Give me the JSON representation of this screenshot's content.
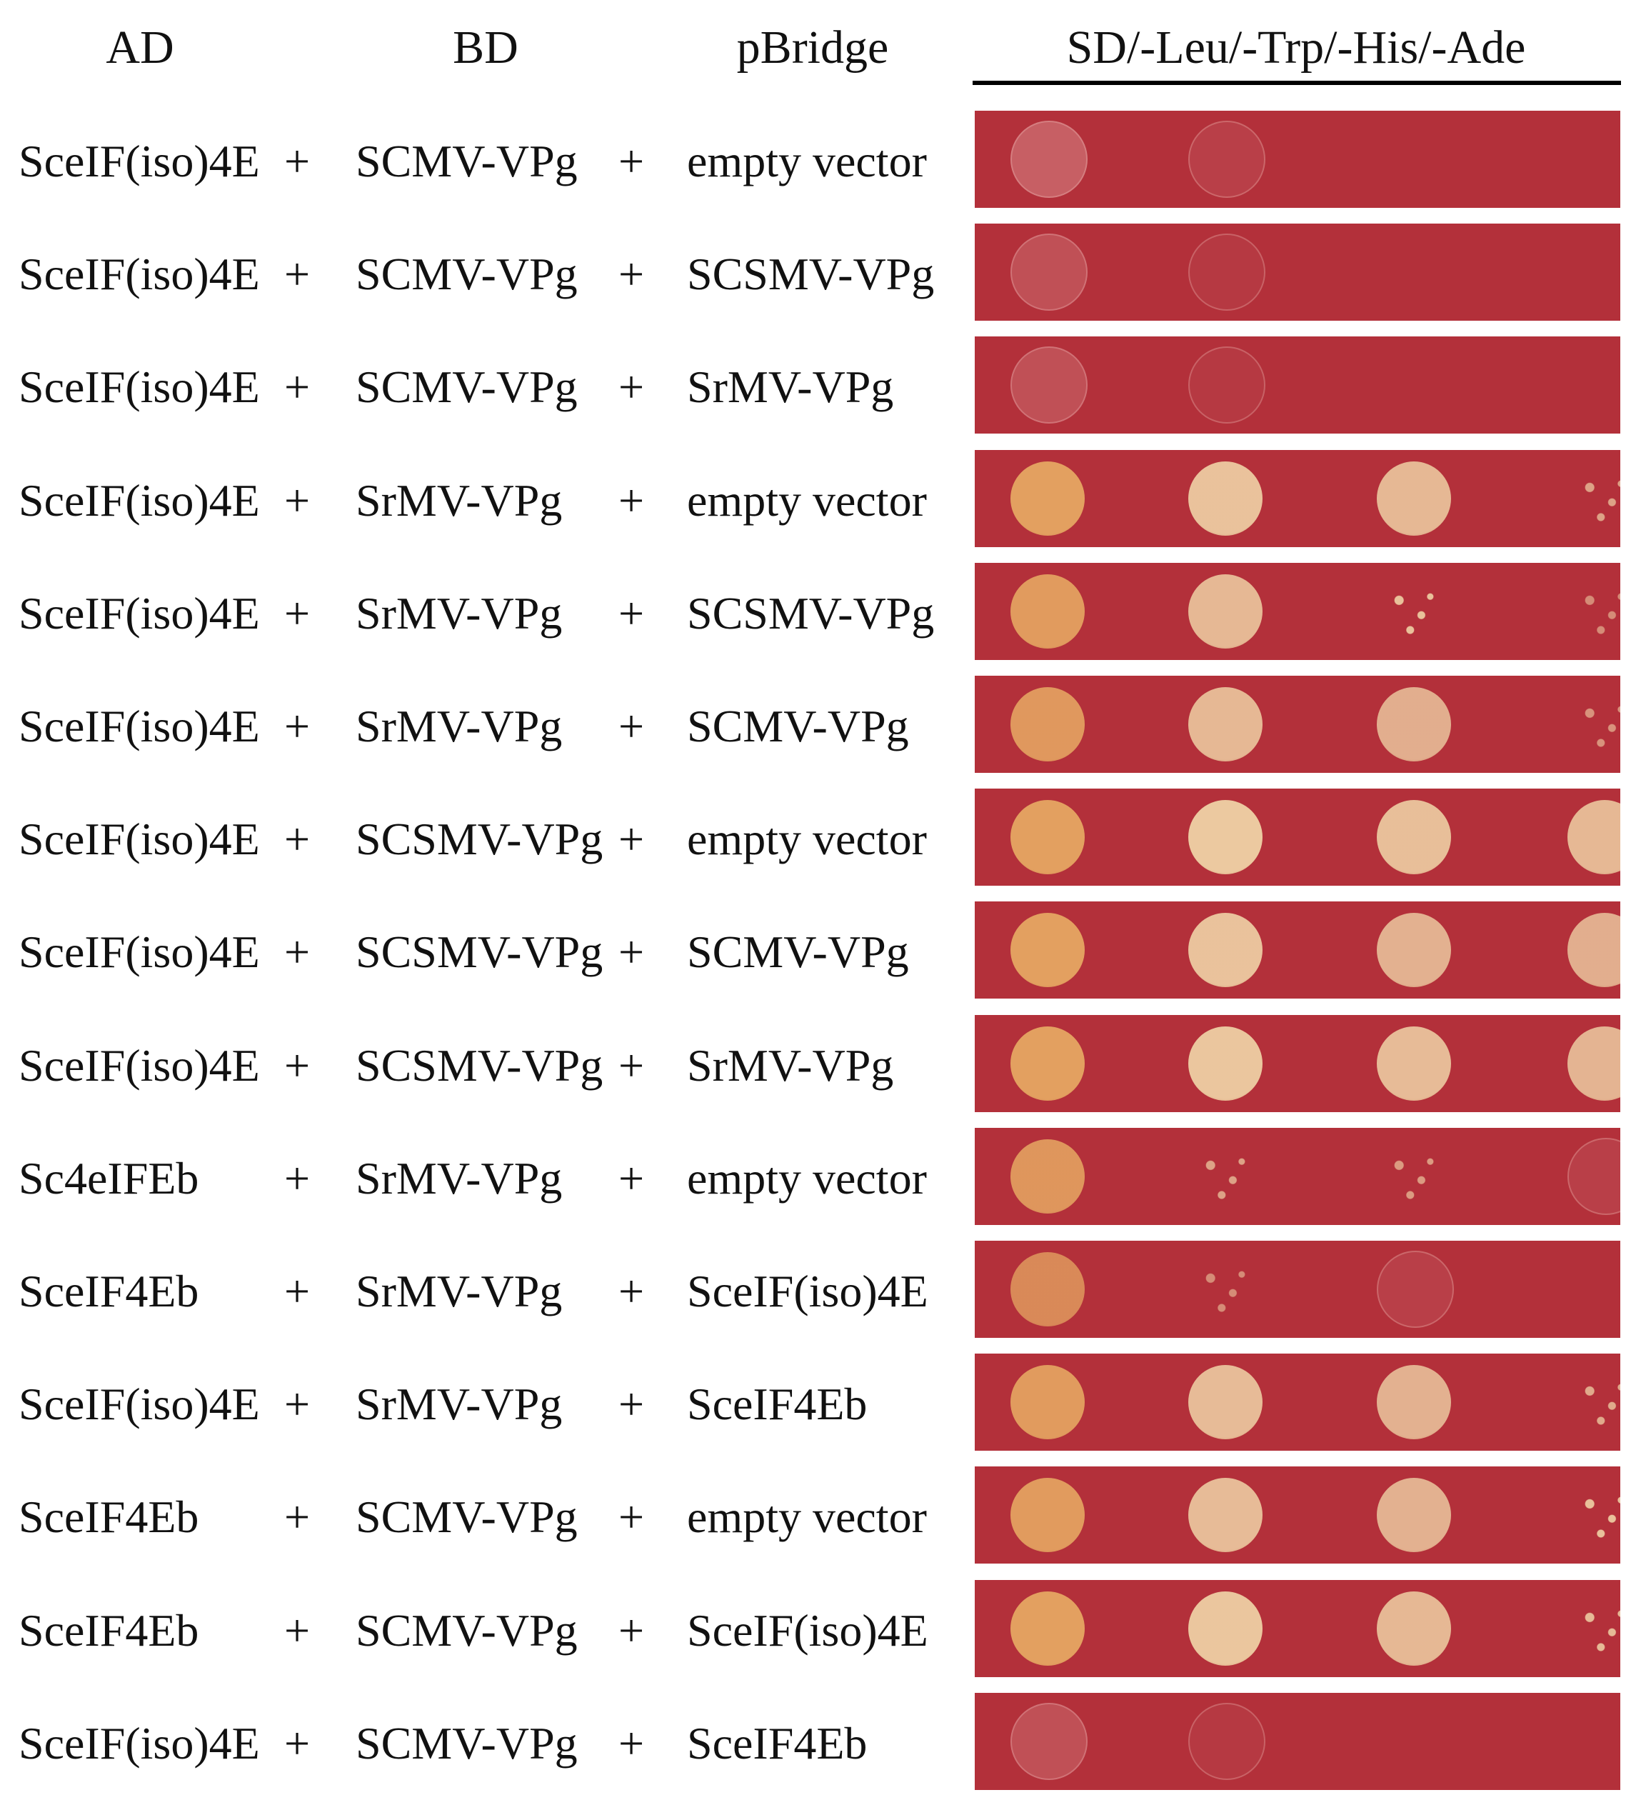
{
  "headers": {
    "ad": "AD",
    "bd": "BD",
    "pbridge": "pBridge",
    "medium": "SD/-Leu/-Trp/-His/-Ade"
  },
  "plus_sign": "+",
  "colors": {
    "plate_red": "#b3303a",
    "colony_orange": "#e3a060",
    "colony_cream": "#ecc9a0"
  },
  "rows": [
    {
      "ad": "SceIF(iso)4E",
      "bd": "SCMV-VPg",
      "pbridge": "empty vector"
    },
    {
      "ad": "SceIF(iso)4E",
      "bd": "SCMV-VPg",
      "pbridge": "SCSMV-VPg"
    },
    {
      "ad": "SceIF(iso)4E",
      "bd": "SCMV-VPg",
      "pbridge": "SrMV-VPg"
    },
    {
      "ad": "SceIF(iso)4E",
      "bd": "SrMV-VPg",
      "pbridge": "empty vector"
    },
    {
      "ad": "SceIF(iso)4E",
      "bd": "SrMV-VPg",
      "pbridge": "SCSMV-VPg"
    },
    {
      "ad": "SceIF(iso)4E",
      "bd": "SrMV-VPg",
      "pbridge": "SCMV-VPg"
    },
    {
      "ad": "SceIF(iso)4E",
      "bd": "SCSMV-VPg",
      "pbridge": "empty vector"
    },
    {
      "ad": "SceIF(iso)4E",
      "bd": "SCSMV-VPg",
      "pbridge": "SCMV-VPg"
    },
    {
      "ad": "SceIF(iso)4E",
      "bd": "SCSMV-VPg",
      "pbridge": "SrMV-VPg"
    },
    {
      "ad": "Sc4eIFEb",
      "bd": "SrMV-VPg",
      "pbridge": "empty vector"
    },
    {
      "ad": "SceIF4Eb",
      "bd": "SrMV-VPg",
      "pbridge": "SceIF(iso)4E"
    },
    {
      "ad": "SceIF(iso)4E",
      "bd": "SrMV-VPg",
      "pbridge": "SceIF4Eb"
    },
    {
      "ad": "SceIF4Eb",
      "bd": "SCMV-VPg",
      "pbridge": "empty vector"
    },
    {
      "ad": "SceIF4Eb",
      "bd": "SCMV-VPg",
      "pbridge": "SceIF(iso)4E"
    },
    {
      "ad": "SceIF(iso)4E",
      "bd": "SCMV-VPg",
      "pbridge": "SceIF4Eb"
    }
  ],
  "growth_levels": [
    [
      0.15,
      0.05,
      0,
      0
    ],
    [
      0.1,
      0.03,
      0,
      0
    ],
    [
      0.1,
      0.03,
      0,
      0
    ],
    [
      1,
      0.9,
      0.75,
      0.35
    ],
    [
      0.9,
      0.75,
      0.55,
      0.2
    ],
    [
      0.85,
      0.75,
      0.6,
      0.25
    ],
    [
      1,
      1,
      0.85,
      0.75
    ],
    [
      1,
      0.9,
      0.65,
      0.6
    ],
    [
      1,
      0.95,
      0.8,
      0.7
    ],
    [
      0.8,
      0.35,
      0.3,
      0.05
    ],
    [
      0.55,
      0.2,
      0.05,
      0
    ],
    [
      0.9,
      0.8,
      0.65,
      0.4
    ],
    [
      0.9,
      0.8,
      0.65,
      0.55
    ],
    [
      1,
      0.95,
      0.75,
      0.5
    ],
    [
      0.1,
      0.03,
      0,
      0
    ]
  ]
}
